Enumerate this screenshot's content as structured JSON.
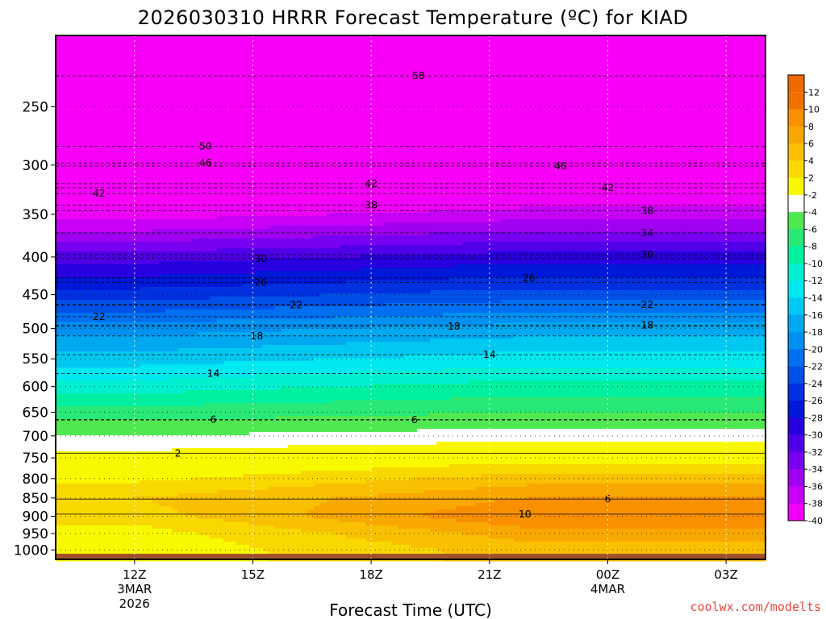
{
  "chart_data": {
    "type": "heatmap",
    "title": "2026030310 HRRR Forecast Temperature (ºC) for KIAD",
    "xlabel": "Forecast Time (UTC)",
    "watermark": "coolwx.com/modelts",
    "y_axis": {
      "scale": "log-pressure",
      "range_hPa": [
        1030,
        200
      ],
      "ticks": [
        "250",
        "300",
        "350",
        "400",
        "450",
        "500",
        "550",
        "600",
        "650",
        "700",
        "750",
        "800",
        "850",
        "900",
        "950",
        "1000"
      ]
    },
    "x_axis": {
      "ticks": [
        {
          "hour": 12,
          "lines": [
            "12Z",
            "3MAR",
            "2026"
          ]
        },
        {
          "hour": 15,
          "lines": [
            "15Z"
          ]
        },
        {
          "hour": 18,
          "lines": [
            "18Z"
          ]
        },
        {
          "hour": 21,
          "lines": [
            "21Z"
          ]
        },
        {
          "hour": 24,
          "lines": [
            "00Z",
            "4MAR"
          ]
        },
        {
          "hour": 27,
          "lines": [
            "03Z"
          ]
        }
      ],
      "range_hours": [
        10,
        28
      ]
    },
    "grid": true,
    "legend": "right",
    "colorbar_levels": [
      "12",
      "10",
      "8",
      "6",
      "4",
      "2",
      "-2",
      "-4",
      "-6",
      "-8",
      "-10",
      "-12",
      "-14",
      "-16",
      "-18",
      "-20",
      "-22",
      "-24",
      "-26",
      "-28",
      "-30",
      "-32",
      "-34",
      "-36",
      "-38",
      "-40"
    ],
    "colorbar_colors": [
      "#f07000",
      "#f89000",
      "#f8a800",
      "#f8c000",
      "#f8d800",
      "#f8f800",
      "#ffffff",
      "#50e850",
      "#28e878",
      "#00f0a0",
      "#00f0d0",
      "#00e8f0",
      "#00c8f0",
      "#00a8f0",
      "#0090f0",
      "#0070f0",
      "#0050e8",
      "#0030e0",
      "#0018d8",
      "#2800e0",
      "#5000e8",
      "#7800f0",
      "#a000f0",
      "#c800f8",
      "#f000f8"
    ],
    "temperature_profile_start": [
      {
        "p": 250,
        "t": -54
      },
      {
        "p": 300,
        "t": -46
      },
      {
        "p": 350,
        "t": -39
      },
      {
        "p": 400,
        "t": -31
      },
      {
        "p": 450,
        "t": -25
      },
      {
        "p": 500,
        "t": -19
      },
      {
        "p": 550,
        "t": -15
      },
      {
        "p": 600,
        "t": -11
      },
      {
        "p": 650,
        "t": -7
      },
      {
        "p": 700,
        "t": -4
      },
      {
        "p": 750,
        "t": -1
      },
      {
        "p": 800,
        "t": 1.5
      },
      {
        "p": 850,
        "t": 4
      },
      {
        "p": 900,
        "t": 3
      },
      {
        "p": 950,
        "t": 1
      },
      {
        "p": 1000,
        "t": 0.5
      }
    ],
    "temperature_profile_mid": [
      {
        "p": 250,
        "t": -55
      },
      {
        "p": 300,
        "t": -44
      },
      {
        "p": 350,
        "t": -37
      },
      {
        "p": 400,
        "t": -29
      },
      {
        "p": 450,
        "t": -23
      },
      {
        "p": 500,
        "t": -17
      },
      {
        "p": 550,
        "t": -13
      },
      {
        "p": 600,
        "t": -9
      },
      {
        "p": 650,
        "t": -6
      },
      {
        "p": 700,
        "t": -3
      },
      {
        "p": 750,
        "t": 1
      },
      {
        "p": 800,
        "t": 5
      },
      {
        "p": 850,
        "t": 8
      },
      {
        "p": 900,
        "t": 10
      },
      {
        "p": 950,
        "t": 7
      },
      {
        "p": 1000,
        "t": 5
      }
    ],
    "contour_labels": [
      {
        "hour": 19.2,
        "p": 227,
        "text": "58"
      },
      {
        "hour": 13.8,
        "p": 283,
        "text": "50"
      },
      {
        "hour": 13.8,
        "p": 298,
        "text": "46"
      },
      {
        "hour": 11.1,
        "p": 328,
        "text": "42"
      },
      {
        "hour": 18.0,
        "p": 318,
        "text": "42"
      },
      {
        "hour": 22.8,
        "p": 301,
        "text": "46"
      },
      {
        "hour": 24.0,
        "p": 322,
        "text": "42"
      },
      {
        "hour": 18.0,
        "p": 340,
        "text": "38"
      },
      {
        "hour": 25.0,
        "p": 346,
        "text": "38"
      },
      {
        "hour": 25.0,
        "p": 371,
        "text": "34"
      },
      {
        "hour": 15.2,
        "p": 402,
        "text": "30"
      },
      {
        "hour": 25.0,
        "p": 397,
        "text": "30"
      },
      {
        "hour": 15.2,
        "p": 433,
        "text": "26"
      },
      {
        "hour": 22.0,
        "p": 427,
        "text": "26"
      },
      {
        "hour": 11.1,
        "p": 482,
        "text": "22"
      },
      {
        "hour": 16.1,
        "p": 465,
        "text": "22"
      },
      {
        "hour": 25.0,
        "p": 464,
        "text": "22"
      },
      {
        "hour": 15.1,
        "p": 512,
        "text": "18"
      },
      {
        "hour": 20.1,
        "p": 497,
        "text": "18"
      },
      {
        "hour": 25.0,
        "p": 495,
        "text": "18"
      },
      {
        "hour": 14.0,
        "p": 576,
        "text": "14"
      },
      {
        "hour": 21.0,
        "p": 543,
        "text": "14"
      },
      {
        "hour": 14.0,
        "p": 665,
        "text": "6"
      },
      {
        "hour": 19.1,
        "p": 666,
        "text": "6"
      },
      {
        "hour": 13.1,
        "p": 739,
        "text": "2"
      },
      {
        "hour": 24.0,
        "p": 853,
        "text": "6"
      },
      {
        "hour": 21.9,
        "p": 894,
        "text": "10"
      }
    ]
  }
}
